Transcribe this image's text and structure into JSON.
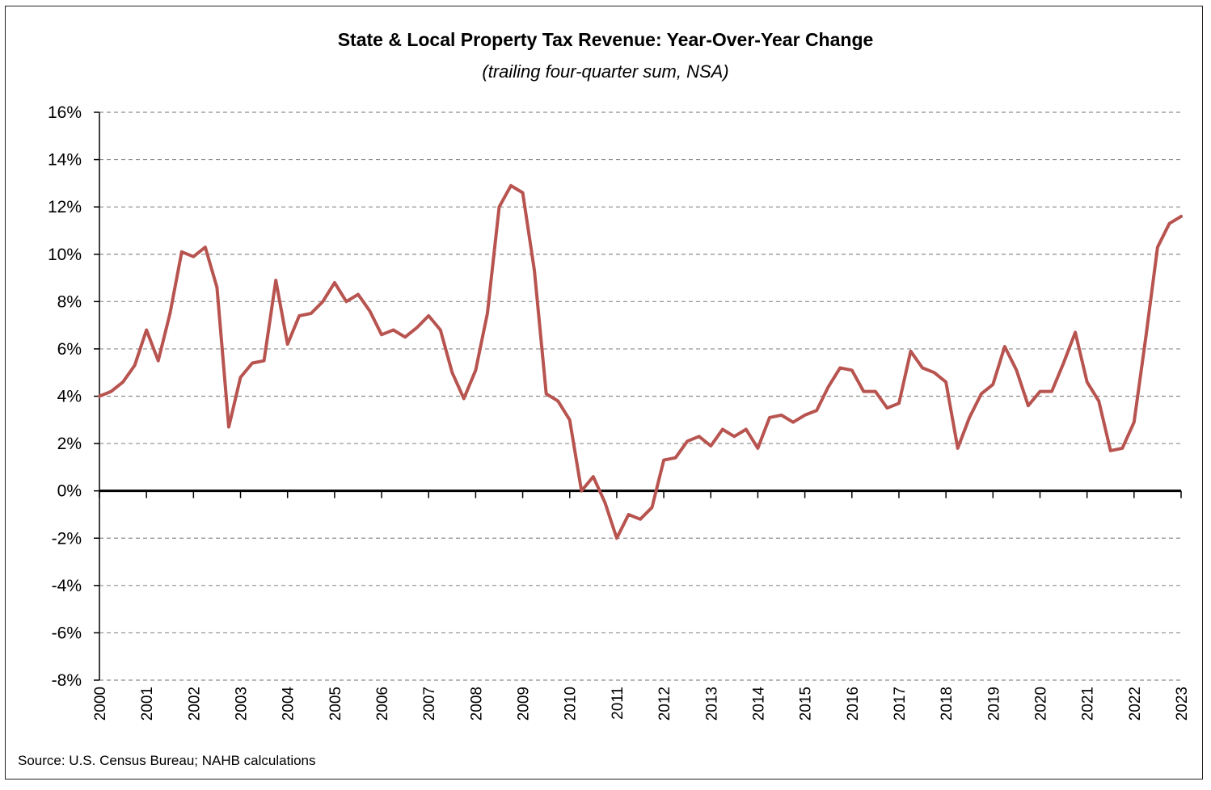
{
  "chart_data": {
    "type": "line",
    "title": "State & Local Property Tax Revenue: Year-Over-Year Change",
    "subtitle": "(trailing four-quarter sum, NSA)",
    "source": "Source: U.S. Census Bureau; NAHB calculations",
    "ylim": [
      -8,
      16
    ],
    "yticks": [
      16,
      14,
      12,
      10,
      8,
      6,
      4,
      2,
      0,
      -2,
      -4,
      -6,
      -8
    ],
    "ytick_labels": [
      "16%",
      "14%",
      "12%",
      "10%",
      "8%",
      "6%",
      "4%",
      "2%",
      "0%",
      "-2%",
      "-4%",
      "-6%",
      "-8%"
    ],
    "xlim": [
      2000,
      2023
    ],
    "xtick_labels": [
      "2000",
      "2001",
      "2002",
      "2003",
      "2004",
      "2005",
      "2006",
      "2007",
      "2008",
      "2009",
      "2010",
      "2011",
      "2012",
      "2013",
      "2014",
      "2015",
      "2016",
      "2017",
      "2018",
      "2019",
      "2020",
      "2021",
      "2022",
      "2023"
    ],
    "grid": "horizontal dashed",
    "series_color": "#b85450",
    "x": [
      2000.0,
      2000.25,
      2000.5,
      2000.75,
      2001.0,
      2001.25,
      2001.5,
      2001.75,
      2002.0,
      2002.25,
      2002.5,
      2002.75,
      2003.0,
      2003.25,
      2003.5,
      2003.75,
      2004.0,
      2004.25,
      2004.5,
      2004.75,
      2005.0,
      2005.25,
      2005.5,
      2005.75,
      2006.0,
      2006.25,
      2006.5,
      2006.75,
      2007.0,
      2007.25,
      2007.5,
      2007.75,
      2008.0,
      2008.25,
      2008.5,
      2008.75,
      2009.0,
      2009.25,
      2009.5,
      2009.75,
      2010.0,
      2010.25,
      2010.5,
      2010.75,
      2011.0,
      2011.25,
      2011.5,
      2011.75,
      2012.0,
      2012.25,
      2012.5,
      2012.75,
      2013.0,
      2013.25,
      2013.5,
      2013.75,
      2014.0,
      2014.25,
      2014.5,
      2014.75,
      2015.0,
      2015.25,
      2015.5,
      2015.75,
      2016.0,
      2016.25,
      2016.5,
      2016.75,
      2017.0,
      2017.25,
      2017.5,
      2017.75,
      2018.0,
      2018.25,
      2018.5,
      2018.75,
      2019.0,
      2019.25,
      2019.5,
      2019.75,
      2020.0,
      2020.25,
      2020.5,
      2020.75,
      2021.0,
      2021.25,
      2021.5,
      2021.75,
      2022.0,
      2022.25,
      2022.5,
      2022.75,
      2023.0
    ],
    "y": [
      4.0,
      4.2,
      4.6,
      5.3,
      6.8,
      5.5,
      7.5,
      10.1,
      9.9,
      10.3,
      8.6,
      2.7,
      4.8,
      5.4,
      5.5,
      8.9,
      6.2,
      7.4,
      7.5,
      8.0,
      8.8,
      8.0,
      8.3,
      7.6,
      6.6,
      6.8,
      6.5,
      6.9,
      7.4,
      6.8,
      5.0,
      3.9,
      5.1,
      7.5,
      12.0,
      12.9,
      12.6,
      9.3,
      4.1,
      3.8,
      3.0,
      0.0,
      0.6,
      -0.5,
      -2.0,
      -1.0,
      -1.2,
      -0.7,
      1.3,
      1.4,
      2.1,
      2.3,
      1.9,
      2.6,
      2.3,
      2.6,
      1.8,
      3.1,
      3.2,
      2.9,
      3.2,
      3.4,
      4.4,
      5.2,
      5.1,
      4.2,
      4.2,
      3.5,
      3.7,
      5.9,
      5.2,
      5.0,
      4.6,
      1.8,
      3.1,
      4.1,
      4.5,
      6.1,
      5.1,
      3.6,
      4.2,
      4.2,
      5.4,
      6.7,
      4.6,
      3.8,
      1.7,
      1.8,
      2.9,
      6.5,
      10.3,
      11.3,
      11.6
    ]
  }
}
